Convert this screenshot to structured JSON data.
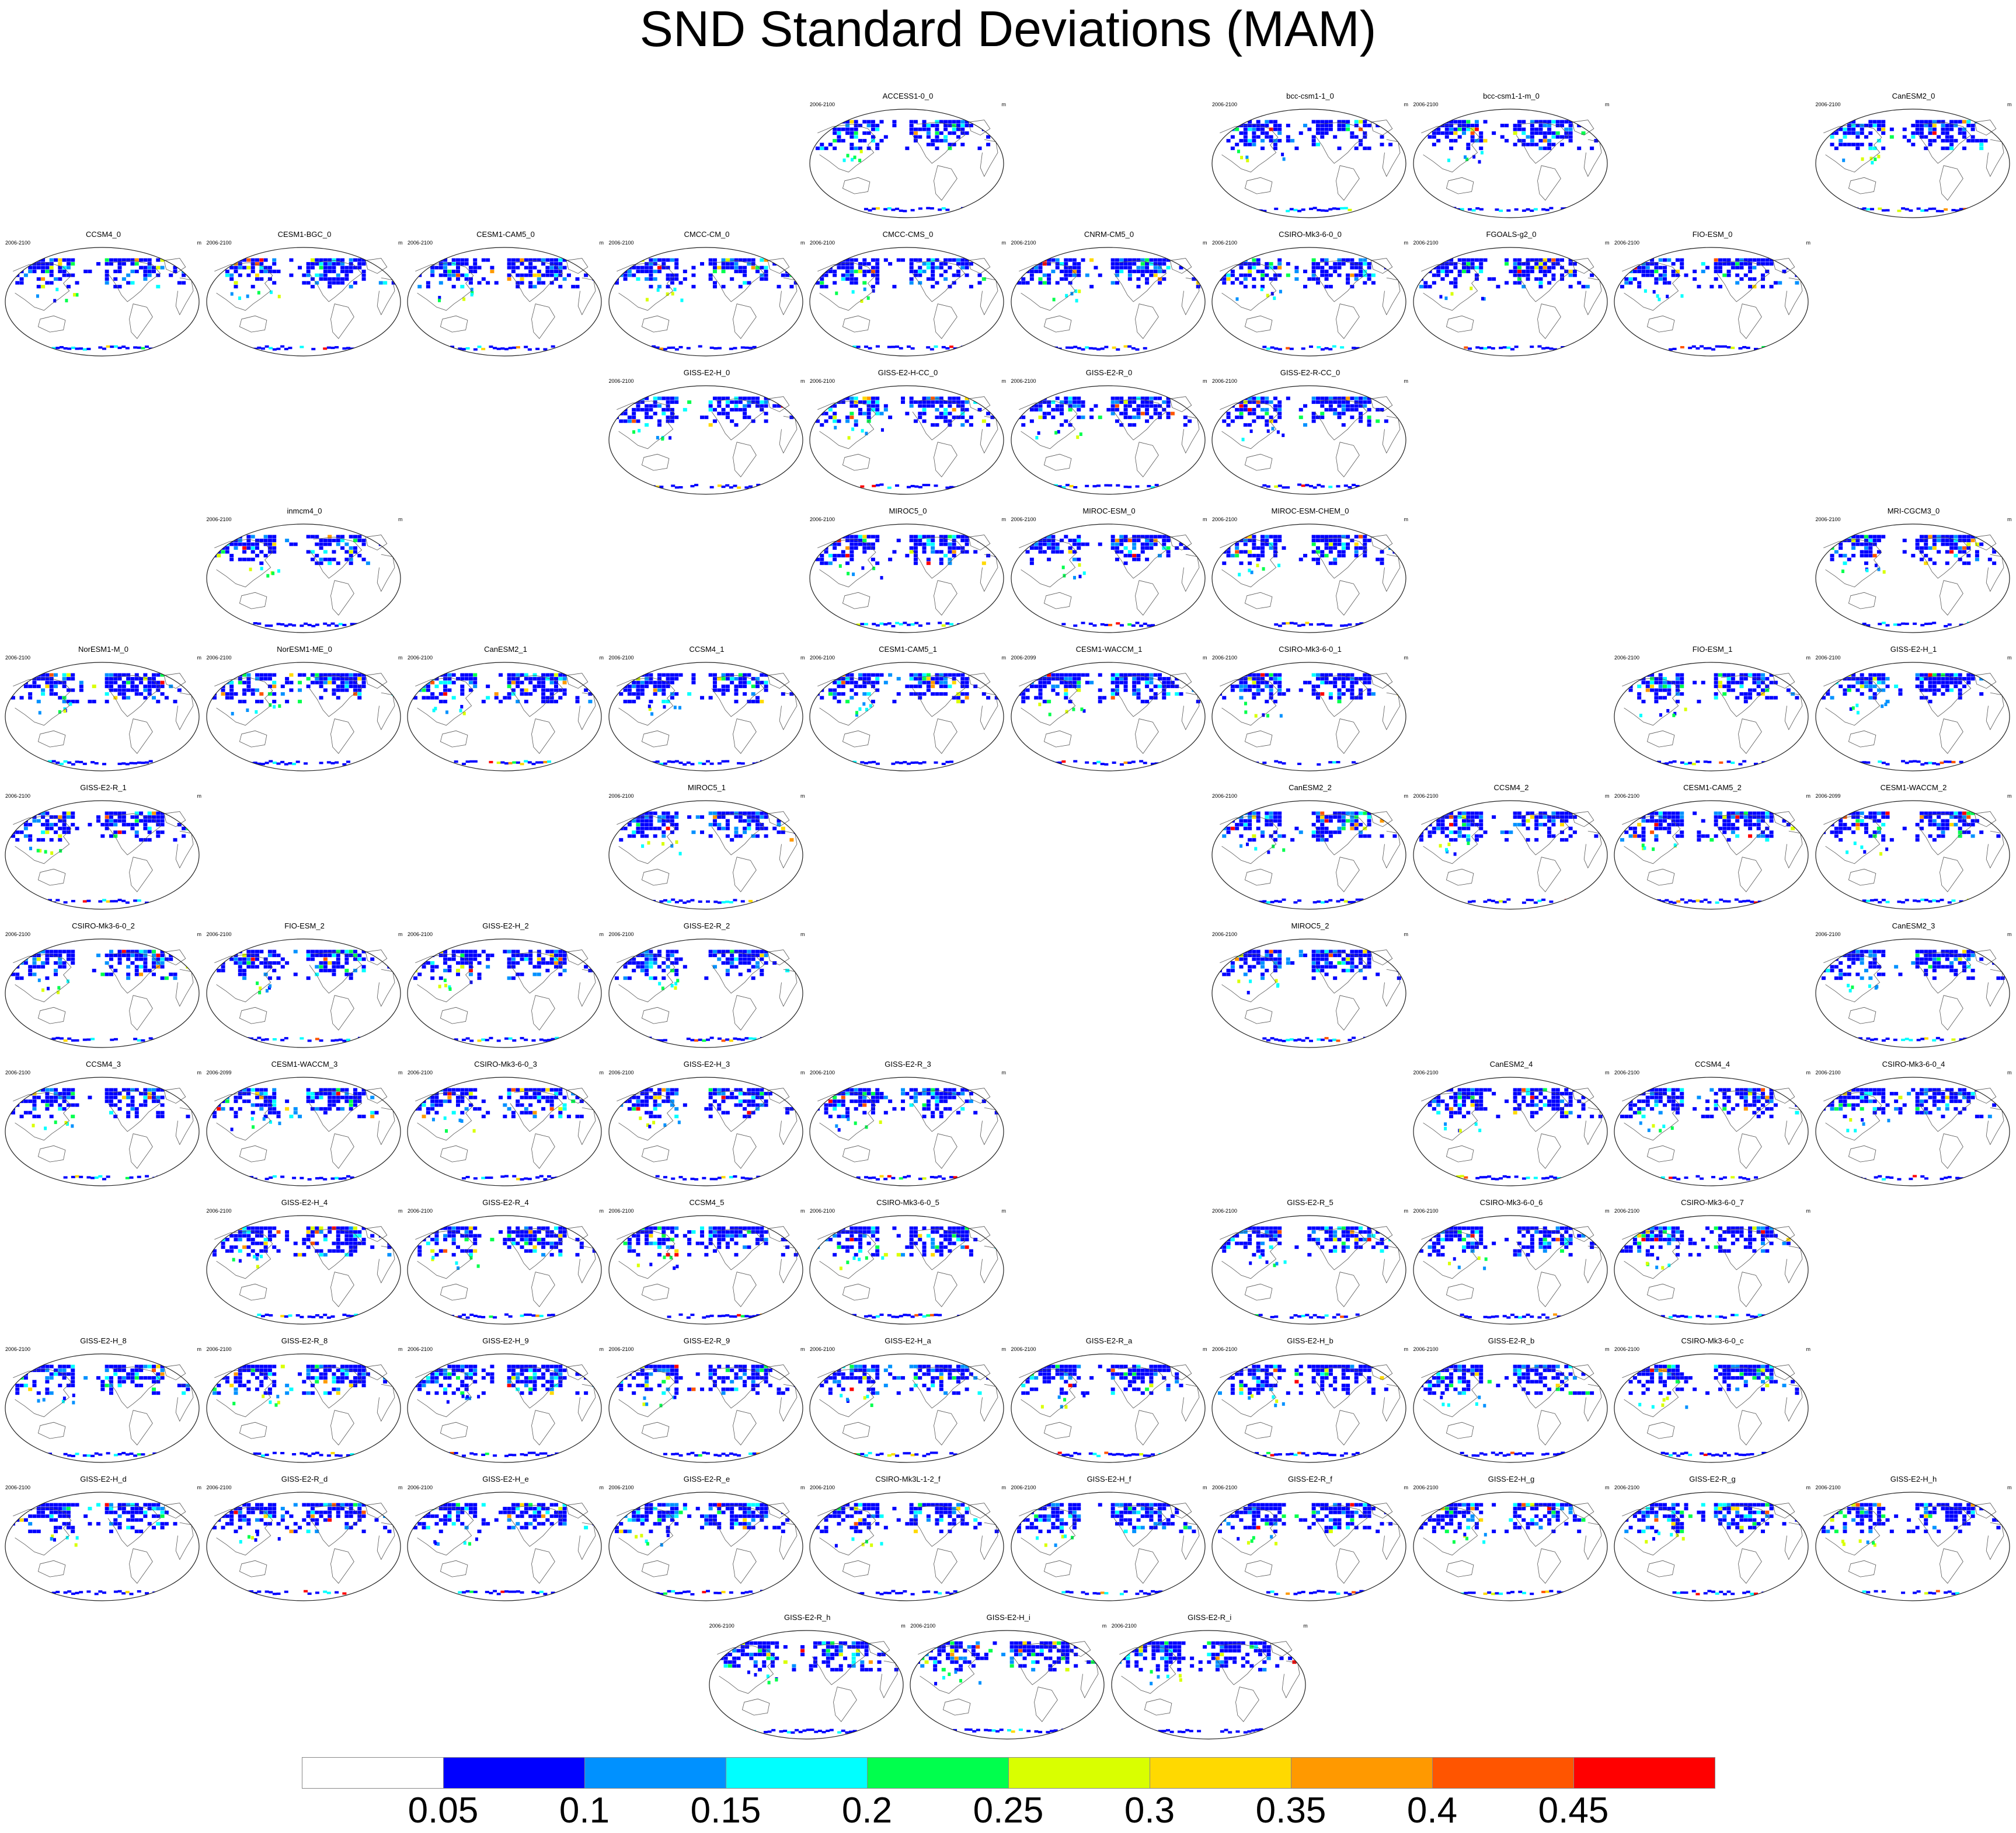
{
  "title": "SND Standard Deviations (MAM)",
  "units": "m",
  "panels": [
    {
      "name": "ACCESS1-0_0",
      "years": "2006-2100",
      "row": 0,
      "col": 4
    },
    {
      "name": "bcc-csm1-1_0",
      "years": "2006-2100",
      "row": 0,
      "col": 6
    },
    {
      "name": "bcc-csm1-1-m_0",
      "years": "2006-2100",
      "row": 0,
      "col": 7
    },
    {
      "name": "CanESM2_0",
      "years": "2006-2100",
      "row": 0,
      "col": 9
    },
    {
      "name": "CCSM4_0",
      "years": "2006-2100",
      "row": 1,
      "col": 0
    },
    {
      "name": "CESM1-BGC_0",
      "years": "2006-2100",
      "row": 1,
      "col": 1
    },
    {
      "name": "CESM1-CAM5_0",
      "years": "2006-2100",
      "row": 1,
      "col": 2
    },
    {
      "name": "CMCC-CM_0",
      "years": "2006-2100",
      "row": 1,
      "col": 3
    },
    {
      "name": "CMCC-CMS_0",
      "years": "2006-2100",
      "row": 1,
      "col": 4
    },
    {
      "name": "CNRM-CM5_0",
      "years": "2006-2100",
      "row": 1,
      "col": 5
    },
    {
      "name": "CSIRO-Mk3-6-0_0",
      "years": "2006-2100",
      "row": 1,
      "col": 6
    },
    {
      "name": "FGOALS-g2_0",
      "years": "2006-2100",
      "row": 1,
      "col": 7
    },
    {
      "name": "FIO-ESM_0",
      "years": "2006-2100",
      "row": 1,
      "col": 8
    },
    {
      "name": "GISS-E2-H_0",
      "years": "2006-2100",
      "row": 2,
      "col": 3
    },
    {
      "name": "GISS-E2-H-CC_0",
      "years": "2006-2100",
      "row": 2,
      "col": 4
    },
    {
      "name": "GISS-E2-R_0",
      "years": "2006-2100",
      "row": 2,
      "col": 5
    },
    {
      "name": "GISS-E2-R-CC_0",
      "years": "2006-2100",
      "row": 2,
      "col": 6
    },
    {
      "name": "inmcm4_0",
      "years": "2006-2100",
      "row": 3,
      "col": 1
    },
    {
      "name": "MIROC5_0",
      "years": "2006-2100",
      "row": 3,
      "col": 4
    },
    {
      "name": "MIROC-ESM_0",
      "years": "2006-2100",
      "row": 3,
      "col": 5
    },
    {
      "name": "MIROC-ESM-CHEM_0",
      "years": "2006-2100",
      "row": 3,
      "col": 6
    },
    {
      "name": "MRI-CGCM3_0",
      "years": "2006-2100",
      "row": 3,
      "col": 9
    },
    {
      "name": "NorESM1-M_0",
      "years": "2006-2100",
      "row": 4,
      "col": 0
    },
    {
      "name": "NorESM1-ME_0",
      "years": "2006-2100",
      "row": 4,
      "col": 1
    },
    {
      "name": "CanESM2_1",
      "years": "2006-2100",
      "row": 4,
      "col": 2
    },
    {
      "name": "CCSM4_1",
      "years": "2006-2100",
      "row": 4,
      "col": 3
    },
    {
      "name": "CESM1-CAM5_1",
      "years": "2006-2100",
      "row": 4,
      "col": 4
    },
    {
      "name": "CESM1-WACCM_1",
      "years": "2006-2099",
      "row": 4,
      "col": 5
    },
    {
      "name": "CSIRO-Mk3-6-0_1",
      "years": "2006-2100",
      "row": 4,
      "col": 6
    },
    {
      "name": "FIO-ESM_1",
      "years": "2006-2100",
      "row": 4,
      "col": 8
    },
    {
      "name": "GISS-E2-H_1",
      "years": "2006-2100",
      "row": 4,
      "col": 9
    },
    {
      "name": "GISS-E2-R_1",
      "years": "2006-2100",
      "row": 5,
      "col": 0
    },
    {
      "name": "MIROC5_1",
      "years": "2006-2100",
      "row": 5,
      "col": 3
    },
    {
      "name": "CanESM2_2",
      "years": "2006-2100",
      "row": 5,
      "col": 6
    },
    {
      "name": "CCSM4_2",
      "years": "2006-2100",
      "row": 5,
      "col": 7
    },
    {
      "name": "CESM1-CAM5_2",
      "years": "2006-2100",
      "row": 5,
      "col": 8
    },
    {
      "name": "CESM1-WACCM_2",
      "years": "2006-2099",
      "row": 5,
      "col": 9
    },
    {
      "name": "CSIRO-Mk3-6-0_2",
      "years": "2006-2100",
      "row": 6,
      "col": 0
    },
    {
      "name": "FIO-ESM_2",
      "years": "2006-2100",
      "row": 6,
      "col": 1
    },
    {
      "name": "GISS-E2-H_2",
      "years": "2006-2100",
      "row": 6,
      "col": 2
    },
    {
      "name": "GISS-E2-R_2",
      "years": "2006-2100",
      "row": 6,
      "col": 3
    },
    {
      "name": "MIROC5_2",
      "years": "2006-2100",
      "row": 6,
      "col": 6
    },
    {
      "name": "CanESM2_3",
      "years": "2006-2100",
      "row": 6,
      "col": 9
    },
    {
      "name": "CCSM4_3",
      "years": "2006-2100",
      "row": 7,
      "col": 0
    },
    {
      "name": "CESM1-WACCM_3",
      "years": "2006-2099",
      "row": 7,
      "col": 1
    },
    {
      "name": "CSIRO-Mk3-6-0_3",
      "years": "2006-2100",
      "row": 7,
      "col": 2
    },
    {
      "name": "GISS-E2-H_3",
      "years": "2006-2100",
      "row": 7,
      "col": 3
    },
    {
      "name": "GISS-E2-R_3",
      "years": "2006-2100",
      "row": 7,
      "col": 4
    },
    {
      "name": "CanESM2_4",
      "years": "2006-2100",
      "row": 7,
      "col": 7
    },
    {
      "name": "CCSM4_4",
      "years": "2006-2100",
      "row": 7,
      "col": 8
    },
    {
      "name": "CSIRO-Mk3-6-0_4",
      "years": "2006-2100",
      "row": 7,
      "col": 9
    },
    {
      "name": "GISS-E2-H_4",
      "years": "2006-2100",
      "row": 8,
      "col": 1
    },
    {
      "name": "GISS-E2-R_4",
      "years": "2006-2100",
      "row": 8,
      "col": 2
    },
    {
      "name": "CCSM4_5",
      "years": "2006-2100",
      "row": 8,
      "col": 3
    },
    {
      "name": "CSIRO-Mk3-6-0_5",
      "years": "2006-2100",
      "row": 8,
      "col": 4
    },
    {
      "name": "GISS-E2-R_5",
      "years": "2006-2100",
      "row": 8,
      "col": 6
    },
    {
      "name": "CSIRO-Mk3-6-0_6",
      "years": "2006-2100",
      "row": 8,
      "col": 7
    },
    {
      "name": "CSIRO-Mk3-6-0_7",
      "years": "2006-2100",
      "row": 8,
      "col": 8
    },
    {
      "name": "GISS-E2-H_8",
      "years": "2006-2100",
      "row": 9,
      "col": 0
    },
    {
      "name": "GISS-E2-R_8",
      "years": "2006-2100",
      "row": 9,
      "col": 1
    },
    {
      "name": "GISS-E2-H_9",
      "years": "2006-2100",
      "row": 9,
      "col": 2
    },
    {
      "name": "GISS-E2-R_9",
      "years": "2006-2100",
      "row": 9,
      "col": 3
    },
    {
      "name": "GISS-E2-H_a",
      "years": "2006-2100",
      "row": 9,
      "col": 4
    },
    {
      "name": "GISS-E2-R_a",
      "years": "2006-2100",
      "row": 9,
      "col": 5
    },
    {
      "name": "GISS-E2-H_b",
      "years": "2006-2100",
      "row": 9,
      "col": 6
    },
    {
      "name": "GISS-E2-R_b",
      "years": "2006-2100",
      "row": 9,
      "col": 7
    },
    {
      "name": "CSIRO-Mk3-6-0_c",
      "years": "2006-2100",
      "row": 9,
      "col": 8
    },
    {
      "name": "GISS-E2-H_d",
      "years": "2006-2100",
      "row": 10,
      "col": 0
    },
    {
      "name": "GISS-E2-R_d",
      "years": "2006-2100",
      "row": 10,
      "col": 1
    },
    {
      "name": "GISS-E2-H_e",
      "years": "2006-2100",
      "row": 10,
      "col": 2
    },
    {
      "name": "GISS-E2-R_e",
      "years": "2006-2100",
      "row": 10,
      "col": 3
    },
    {
      "name": "CSIRO-Mk3L-1-2_f",
      "years": "2006-2100",
      "row": 10,
      "col": 4
    },
    {
      "name": "GISS-E2-H_f",
      "years": "2006-2100",
      "row": 10,
      "col": 5
    },
    {
      "name": "GISS-E2-R_f",
      "years": "2006-2100",
      "row": 10,
      "col": 6
    },
    {
      "name": "GISS-E2-H_g",
      "years": "2006-2100",
      "row": 10,
      "col": 7
    },
    {
      "name": "GISS-E2-R_g",
      "years": "2006-2100",
      "row": 10,
      "col": 8
    },
    {
      "name": "GISS-E2-H_h",
      "years": "2006-2100",
      "row": 10,
      "col": 9
    },
    {
      "name": "GISS-E2-R_h",
      "years": "2006-2100",
      "row": 11,
      "col": 3.5
    },
    {
      "name": "GISS-E2-H_i",
      "years": "2006-2100",
      "row": 11,
      "col": 4.5
    },
    {
      "name": "GISS-E2-R_i",
      "years": "2006-2100",
      "row": 11,
      "col": 5.5
    }
  ],
  "colorbar": {
    "colors": [
      "#ffffff",
      "#0000ff",
      "#0091ff",
      "#00ffff",
      "#00ff4d",
      "#d9ff00",
      "#ffd900",
      "#ff9900",
      "#ff5500",
      "#ff0000"
    ],
    "labels": [
      "0.05",
      "0.1",
      "0.15",
      "0.2",
      "0.25",
      "0.3",
      "0.35",
      "0.4",
      "0.45"
    ]
  }
}
